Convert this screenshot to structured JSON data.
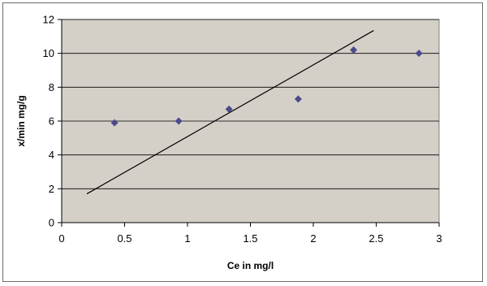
{
  "chart_data": {
    "type": "scatter",
    "title": "",
    "xlabel": "Ce in mg/l",
    "ylabel": "x/min mg/g",
    "xlim": [
      0,
      3
    ],
    "ylim": [
      0,
      12
    ],
    "x_ticks": [
      "0",
      "0.5",
      "1",
      "1.5",
      "2",
      "2.5",
      "3"
    ],
    "y_ticks": [
      "0",
      "2",
      "4",
      "6",
      "8",
      "10",
      "12"
    ],
    "grid": "horizontal",
    "legend": "none",
    "series": [
      {
        "points": [
          {
            "x": 0.42,
            "y": 5.9
          },
          {
            "x": 0.93,
            "y": 6.0
          },
          {
            "x": 1.33,
            "y": 6.7
          },
          {
            "x": 1.88,
            "y": 7.3
          },
          {
            "x": 2.32,
            "y": 10.2
          },
          {
            "x": 2.84,
            "y": 10.0
          }
        ]
      }
    ],
    "trendline": {
      "x": [
        0.2,
        2.48
      ],
      "y": [
        1.7,
        11.35
      ]
    },
    "colors": {
      "plot_background": "#d4d0c8",
      "marker": "#4b4a8c",
      "trendline": "#000000",
      "gridline": "#000000"
    }
  }
}
